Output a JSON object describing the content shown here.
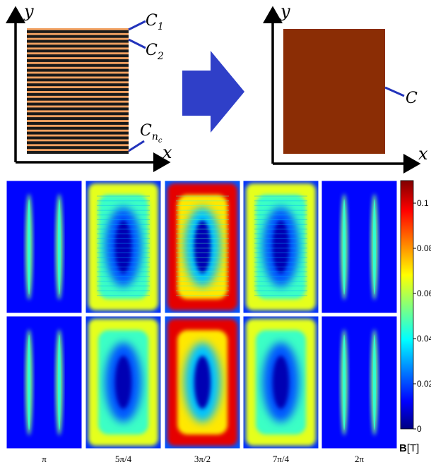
{
  "left_panel": {
    "x_axis": "x",
    "y_axis": "y",
    "labels": [
      {
        "main": "C",
        "sub": "1"
      },
      {
        "main": "C",
        "sub": "2"
      },
      {
        "main": "C",
        "sub": "n",
        "subsub": "c"
      }
    ],
    "strip_count": 26
  },
  "right_panel": {
    "x_axis": "x",
    "y_axis": "y",
    "label": "C"
  },
  "colors": {
    "conductor": "#8b2d05",
    "strip_dark": "#1a1a1a",
    "strip_light": "#f0a060",
    "arrow": "#2f3fc8",
    "leader": "#2233bb"
  },
  "field_maps": {
    "columns": [
      "π",
      "5π/4",
      "3π/2",
      "7π/4",
      "2π"
    ],
    "column_levels": [
      0.25,
      0.6,
      0.9,
      0.6,
      0.25
    ],
    "rows": 2
  },
  "colorbar": {
    "ticks": [
      "0",
      "0.02",
      "0.04",
      "0.06",
      "0.08",
      "0.1"
    ],
    "tick_values": [
      0,
      0.02,
      0.04,
      0.06,
      0.08,
      0.1
    ],
    "max": 0.11,
    "unit_bold": "B",
    "unit": "[T]"
  }
}
